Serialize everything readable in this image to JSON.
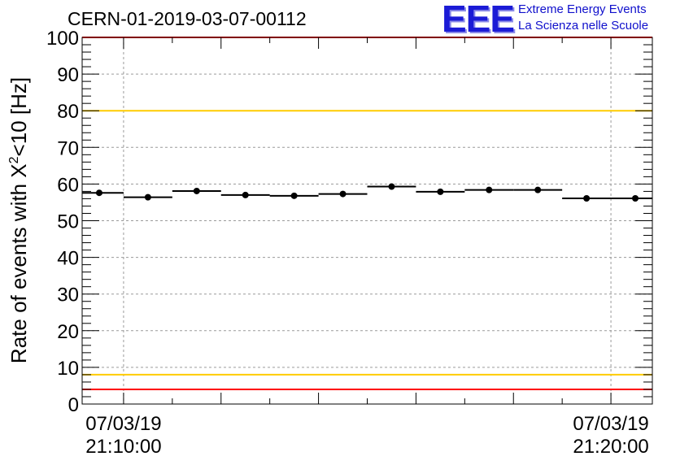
{
  "header": {
    "run_title": "CERN-01-2019-03-07-00112",
    "logo_mark": "EEE",
    "logo_line1": "Extreme Energy Events",
    "logo_line2": "La Scienza nelle Scuole",
    "logo_color": "#1b1bd6"
  },
  "chart_data": {
    "type": "scatter",
    "title": "CERN-01-2019-03-07-00112",
    "ylabel_main": "Rate of events with X",
    "ylabel_sup": "2",
    "ylabel_rest": "<10 [Hz]",
    "xlabel": "",
    "ylim": [
      0,
      100
    ],
    "xlim_minutes": [
      -0.85,
      10.85
    ],
    "y_ticks": [
      "0",
      "10",
      "20",
      "30",
      "40",
      "50",
      "60",
      "70",
      "80",
      "90",
      "100"
    ],
    "x_tick_labels": [
      {
        "date": "07/03/19",
        "time": "21:10:00",
        "minute": 0
      },
      {
        "date": "07/03/19",
        "time": "21:20:00",
        "minute": 10
      }
    ],
    "grid": true,
    "bin_width_minutes": 1,
    "points": [
      {
        "x": -0.5,
        "y": 57.6
      },
      {
        "x": 0.5,
        "y": 56.4
      },
      {
        "x": 1.5,
        "y": 58.1
      },
      {
        "x": 2.5,
        "y": 57.0
      },
      {
        "x": 3.5,
        "y": 56.8
      },
      {
        "x": 4.5,
        "y": 57.3
      },
      {
        "x": 5.5,
        "y": 59.3
      },
      {
        "x": 6.5,
        "y": 57.9
      },
      {
        "x": 7.5,
        "y": 58.4
      },
      {
        "x": 8.5,
        "y": 58.4
      },
      {
        "x": 9.5,
        "y": 56.1
      },
      {
        "x": 10.5,
        "y": 56.1
      }
    ],
    "reference_lines": [
      {
        "y": 100,
        "color": "#ff0000"
      },
      {
        "y": 80,
        "color": "#ffcc00"
      },
      {
        "y": 8,
        "color": "#ffcc00"
      },
      {
        "y": 4,
        "color": "#ff0000"
      }
    ]
  }
}
